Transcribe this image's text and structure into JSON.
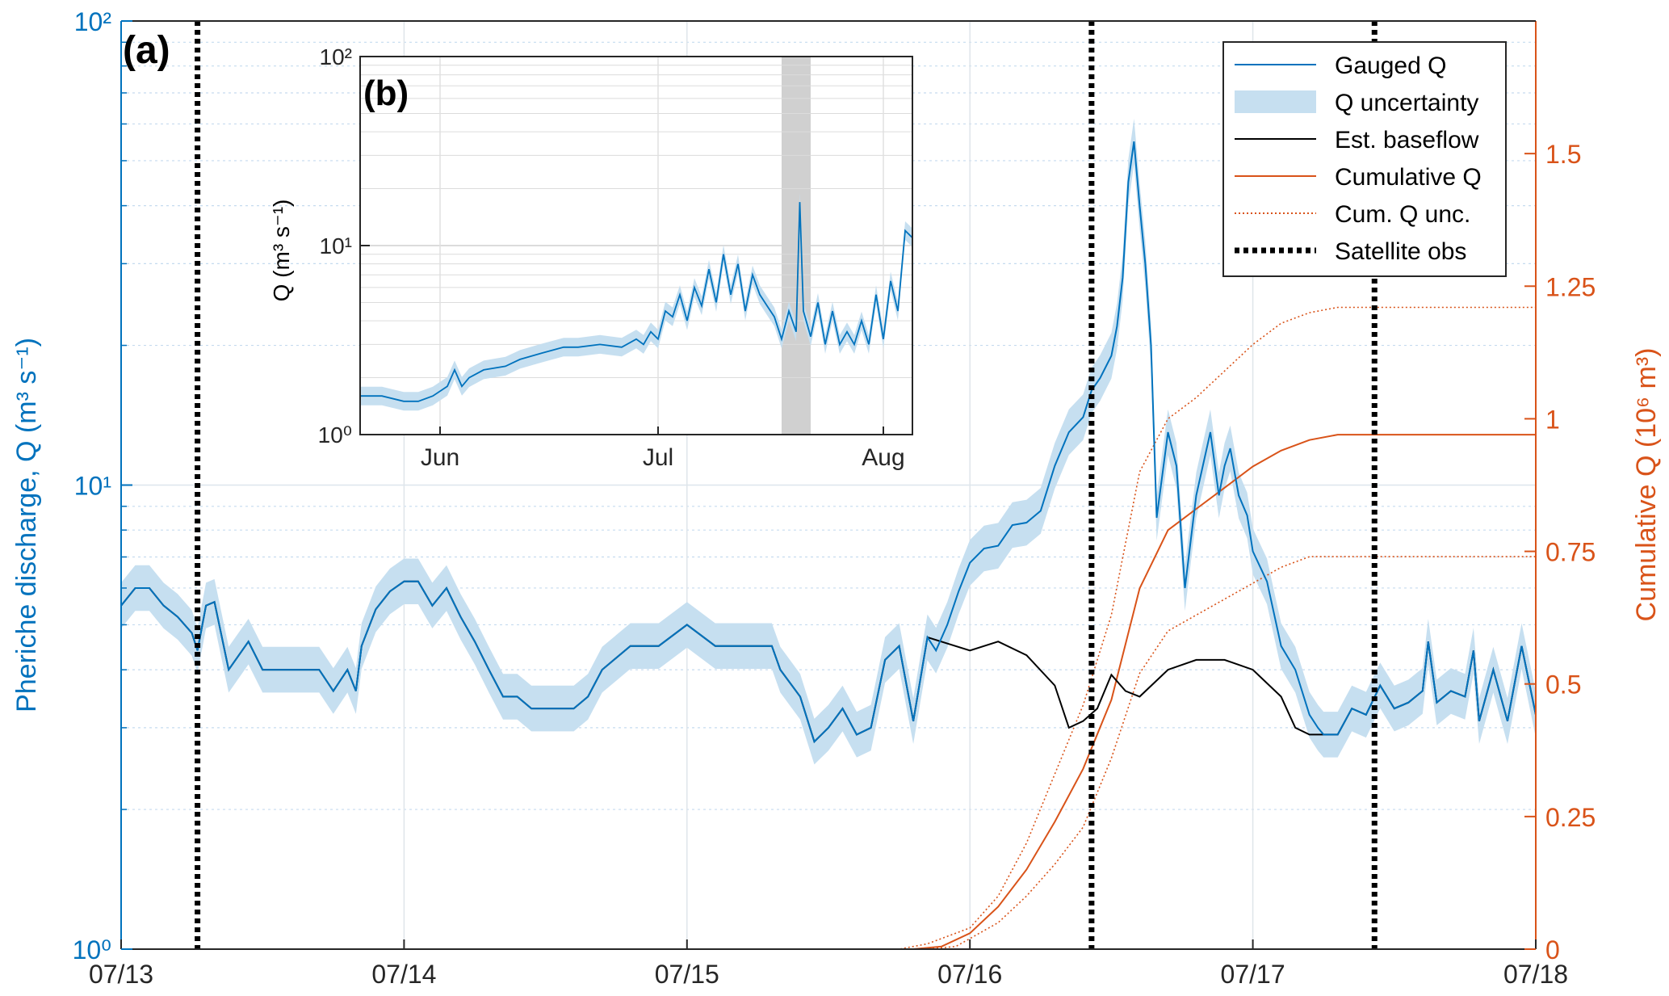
{
  "chart_data": [
    {
      "panel": "main",
      "type": "line",
      "panel_label": "(a)",
      "ylabel_left": "Pheriche discharge, Q (m³ s⁻¹)",
      "ylabel_right": "Cumulative Q (10⁶ m³)",
      "x_ticks": [
        "07/13",
        "07/14",
        "07/15",
        "07/16",
        "07/17",
        "07/18"
      ],
      "x_range_days": [
        0,
        5
      ],
      "y_left": {
        "scale": "log",
        "range": [
          1,
          100
        ],
        "ticks": [
          "10⁰",
          "10¹",
          "10²"
        ]
      },
      "y_right": {
        "scale": "linear",
        "range": [
          0,
          1.75
        ],
        "ticks": [
          "0",
          "0.25",
          "0.5",
          "0.75",
          "1",
          "1.25",
          "1.5"
        ]
      },
      "grid": true,
      "legend_position": "top-right",
      "legend": [
        {
          "label": "Gauged Q",
          "color": "#0072BD",
          "style": "line"
        },
        {
          "label": "Q uncertainty",
          "color": "#c6dff0",
          "style": "band"
        },
        {
          "label": "Est. baseflow",
          "color": "#000000",
          "style": "line"
        },
        {
          "label": "Cumulative Q",
          "color": "#D95319",
          "style": "line"
        },
        {
          "label": "Cum. Q unc.",
          "color": "#D95319",
          "style": "dotted"
        },
        {
          "label": "Satellite obs",
          "color": "#000000",
          "style": "thick-dotted"
        }
      ],
      "satellite_obs_days": [
        0.27,
        3.43,
        4.43
      ],
      "series": [
        {
          "name": "Gauged Q",
          "x": [
            0,
            0.05,
            0.1,
            0.15,
            0.2,
            0.25,
            0.27,
            0.3,
            0.33,
            0.38,
            0.45,
            0.5,
            0.6,
            0.7,
            0.75,
            0.8,
            0.83,
            0.85,
            0.9,
            0.95,
            1.0,
            1.05,
            1.1,
            1.15,
            1.2,
            1.25,
            1.3,
            1.35,
            1.4,
            1.45,
            1.5,
            1.6,
            1.65,
            1.7,
            1.8,
            1.9,
            2.0,
            2.1,
            2.2,
            2.3,
            2.33,
            2.4,
            2.45,
            2.5,
            2.55,
            2.6,
            2.65,
            2.7,
            2.75,
            2.8,
            2.85,
            2.88,
            2.92,
            2.96,
            3.0,
            3.05,
            3.1,
            3.15,
            3.2,
            3.25,
            3.3,
            3.35,
            3.4,
            3.43,
            3.46,
            3.5,
            3.52,
            3.54,
            3.56,
            3.58,
            3.6,
            3.62,
            3.64,
            3.66,
            3.7,
            3.73,
            3.76,
            3.8,
            3.85,
            3.88,
            3.9,
            3.92,
            3.95,
            3.98,
            4.0,
            4.05,
            4.1,
            4.15,
            4.2,
            4.23,
            4.25,
            4.3,
            4.35,
            4.4,
            4.45,
            4.5,
            4.55,
            4.6,
            4.62,
            4.65,
            4.7,
            4.75,
            4.78,
            4.8,
            4.85,
            4.9,
            4.95,
            5.0
          ],
          "y": [
            5.5,
            6.0,
            6.0,
            5.5,
            5.2,
            4.8,
            4.4,
            5.5,
            5.6,
            4.0,
            4.6,
            4.0,
            4.0,
            4.0,
            3.6,
            4.0,
            3.6,
            4.5,
            5.4,
            5.9,
            6.2,
            6.2,
            5.5,
            6.0,
            5.2,
            4.6,
            4.0,
            3.5,
            3.5,
            3.3,
            3.3,
            3.3,
            3.5,
            4.0,
            4.5,
            4.5,
            5.0,
            4.5,
            4.5,
            4.5,
            4.0,
            3.5,
            2.8,
            3.0,
            3.3,
            2.9,
            3.0,
            4.2,
            4.5,
            3.1,
            4.7,
            4.4,
            5.0,
            5.9,
            6.8,
            7.3,
            7.4,
            8.2,
            8.3,
            8.8,
            11,
            13,
            14,
            16,
            17,
            19,
            22,
            28,
            45,
            55,
            40,
            30,
            20,
            8.5,
            13,
            11,
            6.0,
            9.5,
            13,
            9.5,
            11,
            12,
            9.5,
            8.6,
            7.2,
            6.2,
            4.5,
            4.0,
            3.2,
            3.0,
            2.9,
            2.9,
            3.3,
            3.2,
            3.7,
            3.3,
            3.4,
            3.6,
            4.6,
            3.4,
            3.6,
            3.5,
            4.4,
            3.1,
            4.0,
            3.1,
            4.5,
            3.2
          ]
        },
        {
          "name": "Est. baseflow",
          "x": [
            0,
            0.05,
            0.1,
            0.15,
            0.2,
            0.25,
            0.27,
            0.3,
            0.33,
            0.38,
            0.45,
            0.5,
            0.6,
            0.7,
            0.75,
            0.8,
            0.83,
            0.85,
            0.9,
            0.95,
            1.0,
            1.05,
            1.1,
            1.15,
            1.2,
            1.25,
            1.3,
            1.35,
            1.4,
            1.45,
            1.5,
            1.6,
            1.65,
            1.7,
            1.8,
            1.9,
            2.0,
            2.1,
            2.2,
            2.3,
            2.33,
            2.4,
            2.45,
            2.5,
            2.55,
            2.6,
            2.65,
            2.7,
            2.75,
            2.8,
            2.85,
            3.0,
            3.1,
            3.2,
            3.3,
            3.35,
            3.4,
            3.45,
            3.5,
            3.55,
            3.6,
            3.7,
            3.8,
            3.9,
            4.0,
            4.1,
            4.15,
            4.2,
            4.3,
            4.35,
            4.4,
            4.45,
            4.5,
            4.55,
            4.6,
            4.62,
            4.65,
            4.7,
            4.75,
            4.78,
            4.8,
            4.85,
            4.9,
            4.95,
            5.0
          ],
          "y": [
            5.5,
            6.0,
            6.0,
            5.5,
            5.2,
            4.8,
            4.4,
            5.5,
            5.6,
            4.0,
            4.6,
            4.0,
            4.0,
            4.0,
            3.6,
            4.0,
            3.6,
            4.5,
            5.4,
            5.9,
            6.2,
            6.2,
            5.5,
            6.0,
            5.2,
            4.6,
            4.0,
            3.5,
            3.5,
            3.3,
            3.3,
            3.3,
            3.5,
            4.0,
            4.5,
            4.5,
            5.0,
            4.5,
            4.5,
            4.5,
            4.0,
            3.5,
            2.8,
            3.0,
            3.3,
            2.9,
            3.0,
            4.2,
            4.5,
            3.1,
            4.7,
            4.4,
            4.6,
            4.3,
            3.7,
            3.0,
            3.1,
            3.3,
            3.9,
            3.6,
            3.5,
            4.0,
            4.2,
            4.2,
            4.0,
            3.5,
            3.0,
            2.9,
            2.9,
            3.3,
            3.2,
            3.7,
            3.3,
            3.4,
            3.6,
            4.6,
            3.4,
            3.6,
            3.5,
            4.4,
            3.1,
            4.0,
            3.1,
            4.5,
            3.2
          ]
        },
        {
          "name": "Cumulative Q",
          "x": [
            0,
            2.8,
            2.9,
            3.0,
            3.1,
            3.2,
            3.3,
            3.4,
            3.5,
            3.6,
            3.7,
            3.8,
            3.9,
            4.0,
            4.1,
            4.2,
            4.3,
            5.0
          ],
          "y": [
            0,
            0,
            0.005,
            0.03,
            0.08,
            0.15,
            0.24,
            0.34,
            0.47,
            0.68,
            0.79,
            0.83,
            0.87,
            0.91,
            0.94,
            0.96,
            0.97,
            0.97
          ]
        },
        {
          "name": "Cum. Q unc. upper",
          "x": [
            0,
            2.75,
            2.85,
            3.0,
            3.1,
            3.2,
            3.3,
            3.4,
            3.5,
            3.6,
            3.7,
            3.8,
            3.9,
            4.0,
            4.1,
            4.2,
            4.3,
            5.0
          ],
          "y": [
            0,
            0,
            0.01,
            0.04,
            0.1,
            0.2,
            0.33,
            0.46,
            0.63,
            0.9,
            1.0,
            1.04,
            1.09,
            1.14,
            1.18,
            1.2,
            1.21,
            1.21
          ]
        },
        {
          "name": "Cum. Q unc. lower",
          "x": [
            0,
            2.85,
            2.95,
            3.0,
            3.1,
            3.2,
            3.3,
            3.4,
            3.5,
            3.6,
            3.7,
            3.8,
            3.9,
            4.0,
            4.1,
            4.2,
            4.3,
            5.0
          ],
          "y": [
            0,
            0,
            0.005,
            0.02,
            0.05,
            0.1,
            0.16,
            0.23,
            0.36,
            0.52,
            0.6,
            0.63,
            0.66,
            0.69,
            0.72,
            0.74,
            0.74,
            0.74
          ]
        }
      ],
      "q_uncertainty_relative": 0.12
    },
    {
      "panel": "inset",
      "type": "line",
      "panel_label": "(b)",
      "ylabel": "Q (m³ s⁻¹)",
      "x_ticks": [
        "Jun",
        "Jul",
        "Aug"
      ],
      "x_range_days": [
        0,
        76
      ],
      "x_tick_days": [
        11,
        41,
        72
      ],
      "y": {
        "scale": "log",
        "range": [
          1,
          100
        ],
        "ticks": [
          "10⁰",
          "10¹",
          "10²"
        ]
      },
      "highlight_span_days": [
        58,
        62
      ],
      "series": [
        {
          "name": "Gauged Q",
          "x": [
            0,
            3,
            6,
            8,
            10,
            12,
            13,
            14,
            15,
            17,
            20,
            22,
            25,
            28,
            30,
            33,
            36,
            38,
            39,
            40,
            41,
            42,
            43,
            44,
            45,
            46,
            47,
            48,
            49,
            50,
            51,
            52,
            53,
            54,
            55,
            56,
            57,
            58,
            59,
            60,
            60.5,
            61,
            62,
            63,
            64,
            65,
            66,
            67,
            68,
            69,
            70,
            71,
            72,
            73,
            74,
            75,
            76
          ],
          "y": [
            1.6,
            1.6,
            1.5,
            1.5,
            1.6,
            1.8,
            2.2,
            1.8,
            2.0,
            2.2,
            2.3,
            2.5,
            2.7,
            2.9,
            2.9,
            3.0,
            2.9,
            3.2,
            3.0,
            3.5,
            3.2,
            4.5,
            4.2,
            5.5,
            4.0,
            6.0,
            4.8,
            7.5,
            5.0,
            9.0,
            5.5,
            8.0,
            4.5,
            7.0,
            5.5,
            4.8,
            4.2,
            3.2,
            4.5,
            3.5,
            17,
            4.5,
            3.3,
            5.0,
            3.0,
            4.5,
            3.0,
            3.5,
            3.0,
            4.0,
            3.0,
            5.5,
            3.2,
            6.5,
            4.5,
            12,
            11
          ]
        }
      ]
    }
  ]
}
